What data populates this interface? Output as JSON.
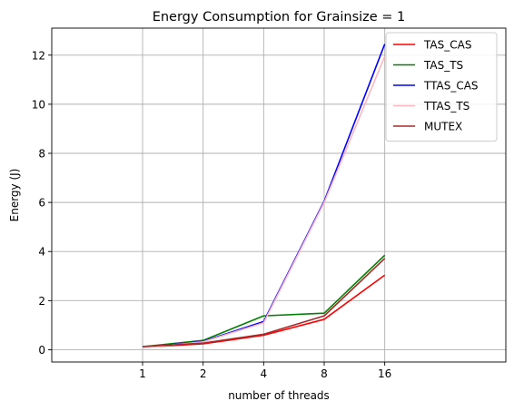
{
  "chart_data": {
    "type": "line",
    "title": "Energy Consumption for Grainsize = 1",
    "xlabel": "number of threads",
    "ylabel": "Energy (J)",
    "categories": [
      "1",
      "2",
      "4",
      "8",
      "16"
    ],
    "xlim": [
      -1.5,
      6
    ],
    "ylim": [
      -0.5,
      13.1
    ],
    "yticks": [
      0,
      2,
      4,
      6,
      8,
      10,
      12
    ],
    "grid": true,
    "legend_position": "top-right",
    "series": [
      {
        "name": "TAS_CAS",
        "color": "#ff0000",
        "values": [
          0.1,
          0.24,
          0.59,
          1.24,
          3.04
        ]
      },
      {
        "name": "TAS_TS",
        "color": "#008000",
        "values": [
          0.12,
          0.38,
          1.38,
          1.49,
          3.85
        ]
      },
      {
        "name": "TTAS_CAS",
        "color": "#0000ff",
        "values": [
          0.09,
          0.34,
          1.15,
          6.05,
          12.45
        ]
      },
      {
        "name": "TTAS_TS",
        "color": "#ffb6c1",
        "values": [
          0.08,
          0.32,
          1.1,
          6.0,
          11.95
        ]
      },
      {
        "name": "MUTEX",
        "color": "#a52a2a",
        "values": [
          0.13,
          0.27,
          0.63,
          1.38,
          3.72
        ]
      }
    ]
  }
}
